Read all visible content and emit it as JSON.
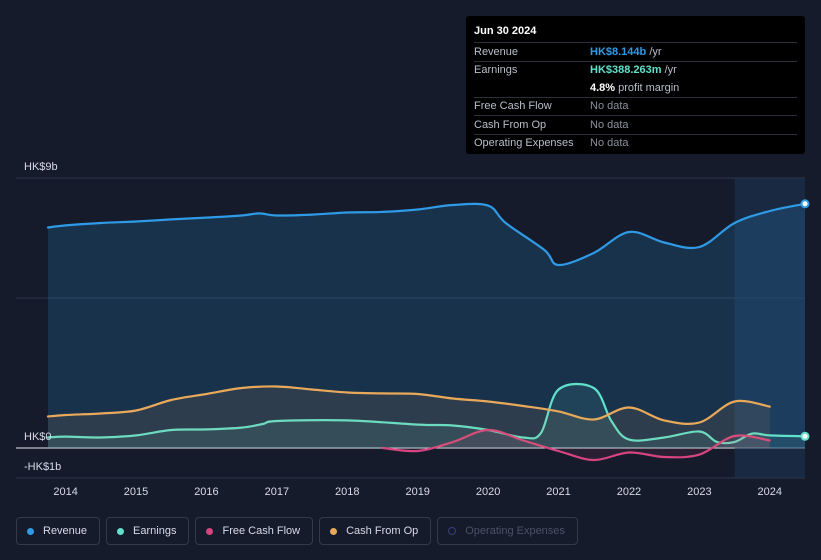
{
  "tooltip": {
    "date": "Jun 30 2024",
    "rows": [
      {
        "label": "Revenue",
        "value": "HK$8.144b",
        "unit": " /yr"
      },
      {
        "label": "Earnings",
        "value": "HK$388.263m",
        "unit": " /yr"
      },
      {
        "label": "",
        "value": "4.8%",
        "unit": " profit margin"
      },
      {
        "label": "Free Cash Flow",
        "value": "No data"
      },
      {
        "label": "Cash From Op",
        "value": "No data"
      },
      {
        "label": "Operating Expenses",
        "value": "No data"
      }
    ]
  },
  "legend": [
    {
      "label": "Revenue",
      "color": "#2f9be6",
      "active": true
    },
    {
      "label": "Earnings",
      "color": "#5fe1cb",
      "active": true
    },
    {
      "label": "Free Cash Flow",
      "color": "#d6457f",
      "active": true
    },
    {
      "label": "Cash From Op",
      "color": "#e8a95b",
      "active": true
    },
    {
      "label": "Operating Expenses",
      "color": "#3a3f78",
      "active": false
    }
  ],
  "chart_data": {
    "type": "line",
    "y_unit": "HK$ billions",
    "ylim": [
      -1,
      9
    ],
    "xlim": [
      2013.75,
      2024.5
    ],
    "y_tick_labels": [
      {
        "value": 9,
        "label": "HK$9b"
      },
      {
        "value": 0,
        "label": "HK$0"
      },
      {
        "value": -1,
        "label": "-HK$1b"
      }
    ],
    "x_ticks": [
      2014,
      2015,
      2016,
      2017,
      2018,
      2019,
      2020,
      2021,
      2022,
      2023,
      2024
    ],
    "highlight_start": 2023.5,
    "series": [
      {
        "name": "Revenue",
        "color": "#2f9be6",
        "fill": true,
        "points": [
          [
            2013.75,
            7.35
          ],
          [
            2014,
            7.42
          ],
          [
            2014.5,
            7.5
          ],
          [
            2015,
            7.55
          ],
          [
            2015.5,
            7.62
          ],
          [
            2016,
            7.68
          ],
          [
            2016.5,
            7.75
          ],
          [
            2016.75,
            7.82
          ],
          [
            2017,
            7.75
          ],
          [
            2017.5,
            7.78
          ],
          [
            2018,
            7.85
          ],
          [
            2018.5,
            7.87
          ],
          [
            2019,
            7.95
          ],
          [
            2019.5,
            8.1
          ],
          [
            2020,
            8.08
          ],
          [
            2020.25,
            7.5
          ],
          [
            2020.8,
            6.6
          ],
          [
            2021,
            6.1
          ],
          [
            2021.5,
            6.5
          ],
          [
            2022,
            7.2
          ],
          [
            2022.5,
            6.85
          ],
          [
            2023,
            6.7
          ],
          [
            2023.5,
            7.5
          ],
          [
            2024,
            7.9
          ],
          [
            2024.5,
            8.14
          ]
        ]
      },
      {
        "name": "Earnings",
        "color": "#5fe1cb",
        "fill": true,
        "points": [
          [
            2013.75,
            0.35
          ],
          [
            2014,
            0.38
          ],
          [
            2014.5,
            0.35
          ],
          [
            2015,
            0.42
          ],
          [
            2015.5,
            0.6
          ],
          [
            2016,
            0.62
          ],
          [
            2016.5,
            0.68
          ],
          [
            2016.8,
            0.8
          ],
          [
            2017,
            0.9
          ],
          [
            2018,
            0.92
          ],
          [
            2019,
            0.78
          ],
          [
            2019.5,
            0.75
          ],
          [
            2020,
            0.6
          ],
          [
            2020.5,
            0.35
          ],
          [
            2020.75,
            0.5
          ],
          [
            2021,
            1.95
          ],
          [
            2021.5,
            2.0
          ],
          [
            2021.75,
            0.9
          ],
          [
            2022,
            0.28
          ],
          [
            2022.5,
            0.35
          ],
          [
            2023,
            0.55
          ],
          [
            2023.25,
            0.2
          ],
          [
            2023.5,
            0.2
          ],
          [
            2023.75,
            0.48
          ],
          [
            2024,
            0.42
          ],
          [
            2024.5,
            0.39
          ]
        ]
      },
      {
        "name": "Free Cash Flow",
        "color": "#d6457f",
        "fill": true,
        "points": [
          [
            2018.5,
            0.0
          ],
          [
            2019,
            -0.1
          ],
          [
            2019.5,
            0.2
          ],
          [
            2020,
            0.6
          ],
          [
            2020.5,
            0.25
          ],
          [
            2021,
            -0.1
          ],
          [
            2021.5,
            -0.4
          ],
          [
            2022,
            -0.15
          ],
          [
            2022.5,
            -0.3
          ],
          [
            2023,
            -0.22
          ],
          [
            2023.5,
            0.4
          ],
          [
            2024,
            0.25
          ]
        ]
      },
      {
        "name": "Cash From Op",
        "color": "#e8a95b",
        "fill": true,
        "points": [
          [
            2013.75,
            1.05
          ],
          [
            2014,
            1.1
          ],
          [
            2014.5,
            1.15
          ],
          [
            2015,
            1.25
          ],
          [
            2015.5,
            1.6
          ],
          [
            2016,
            1.8
          ],
          [
            2016.5,
            2.0
          ],
          [
            2017,
            2.05
          ],
          [
            2017.5,
            1.95
          ],
          [
            2018,
            1.85
          ],
          [
            2018.5,
            1.82
          ],
          [
            2019,
            1.8
          ],
          [
            2019.5,
            1.65
          ],
          [
            2020,
            1.55
          ],
          [
            2020.5,
            1.4
          ],
          [
            2021,
            1.22
          ],
          [
            2021.5,
            0.95
          ],
          [
            2022,
            1.35
          ],
          [
            2022.5,
            0.92
          ],
          [
            2023,
            0.85
          ],
          [
            2023.5,
            1.55
          ],
          [
            2024,
            1.38
          ]
        ]
      }
    ]
  }
}
